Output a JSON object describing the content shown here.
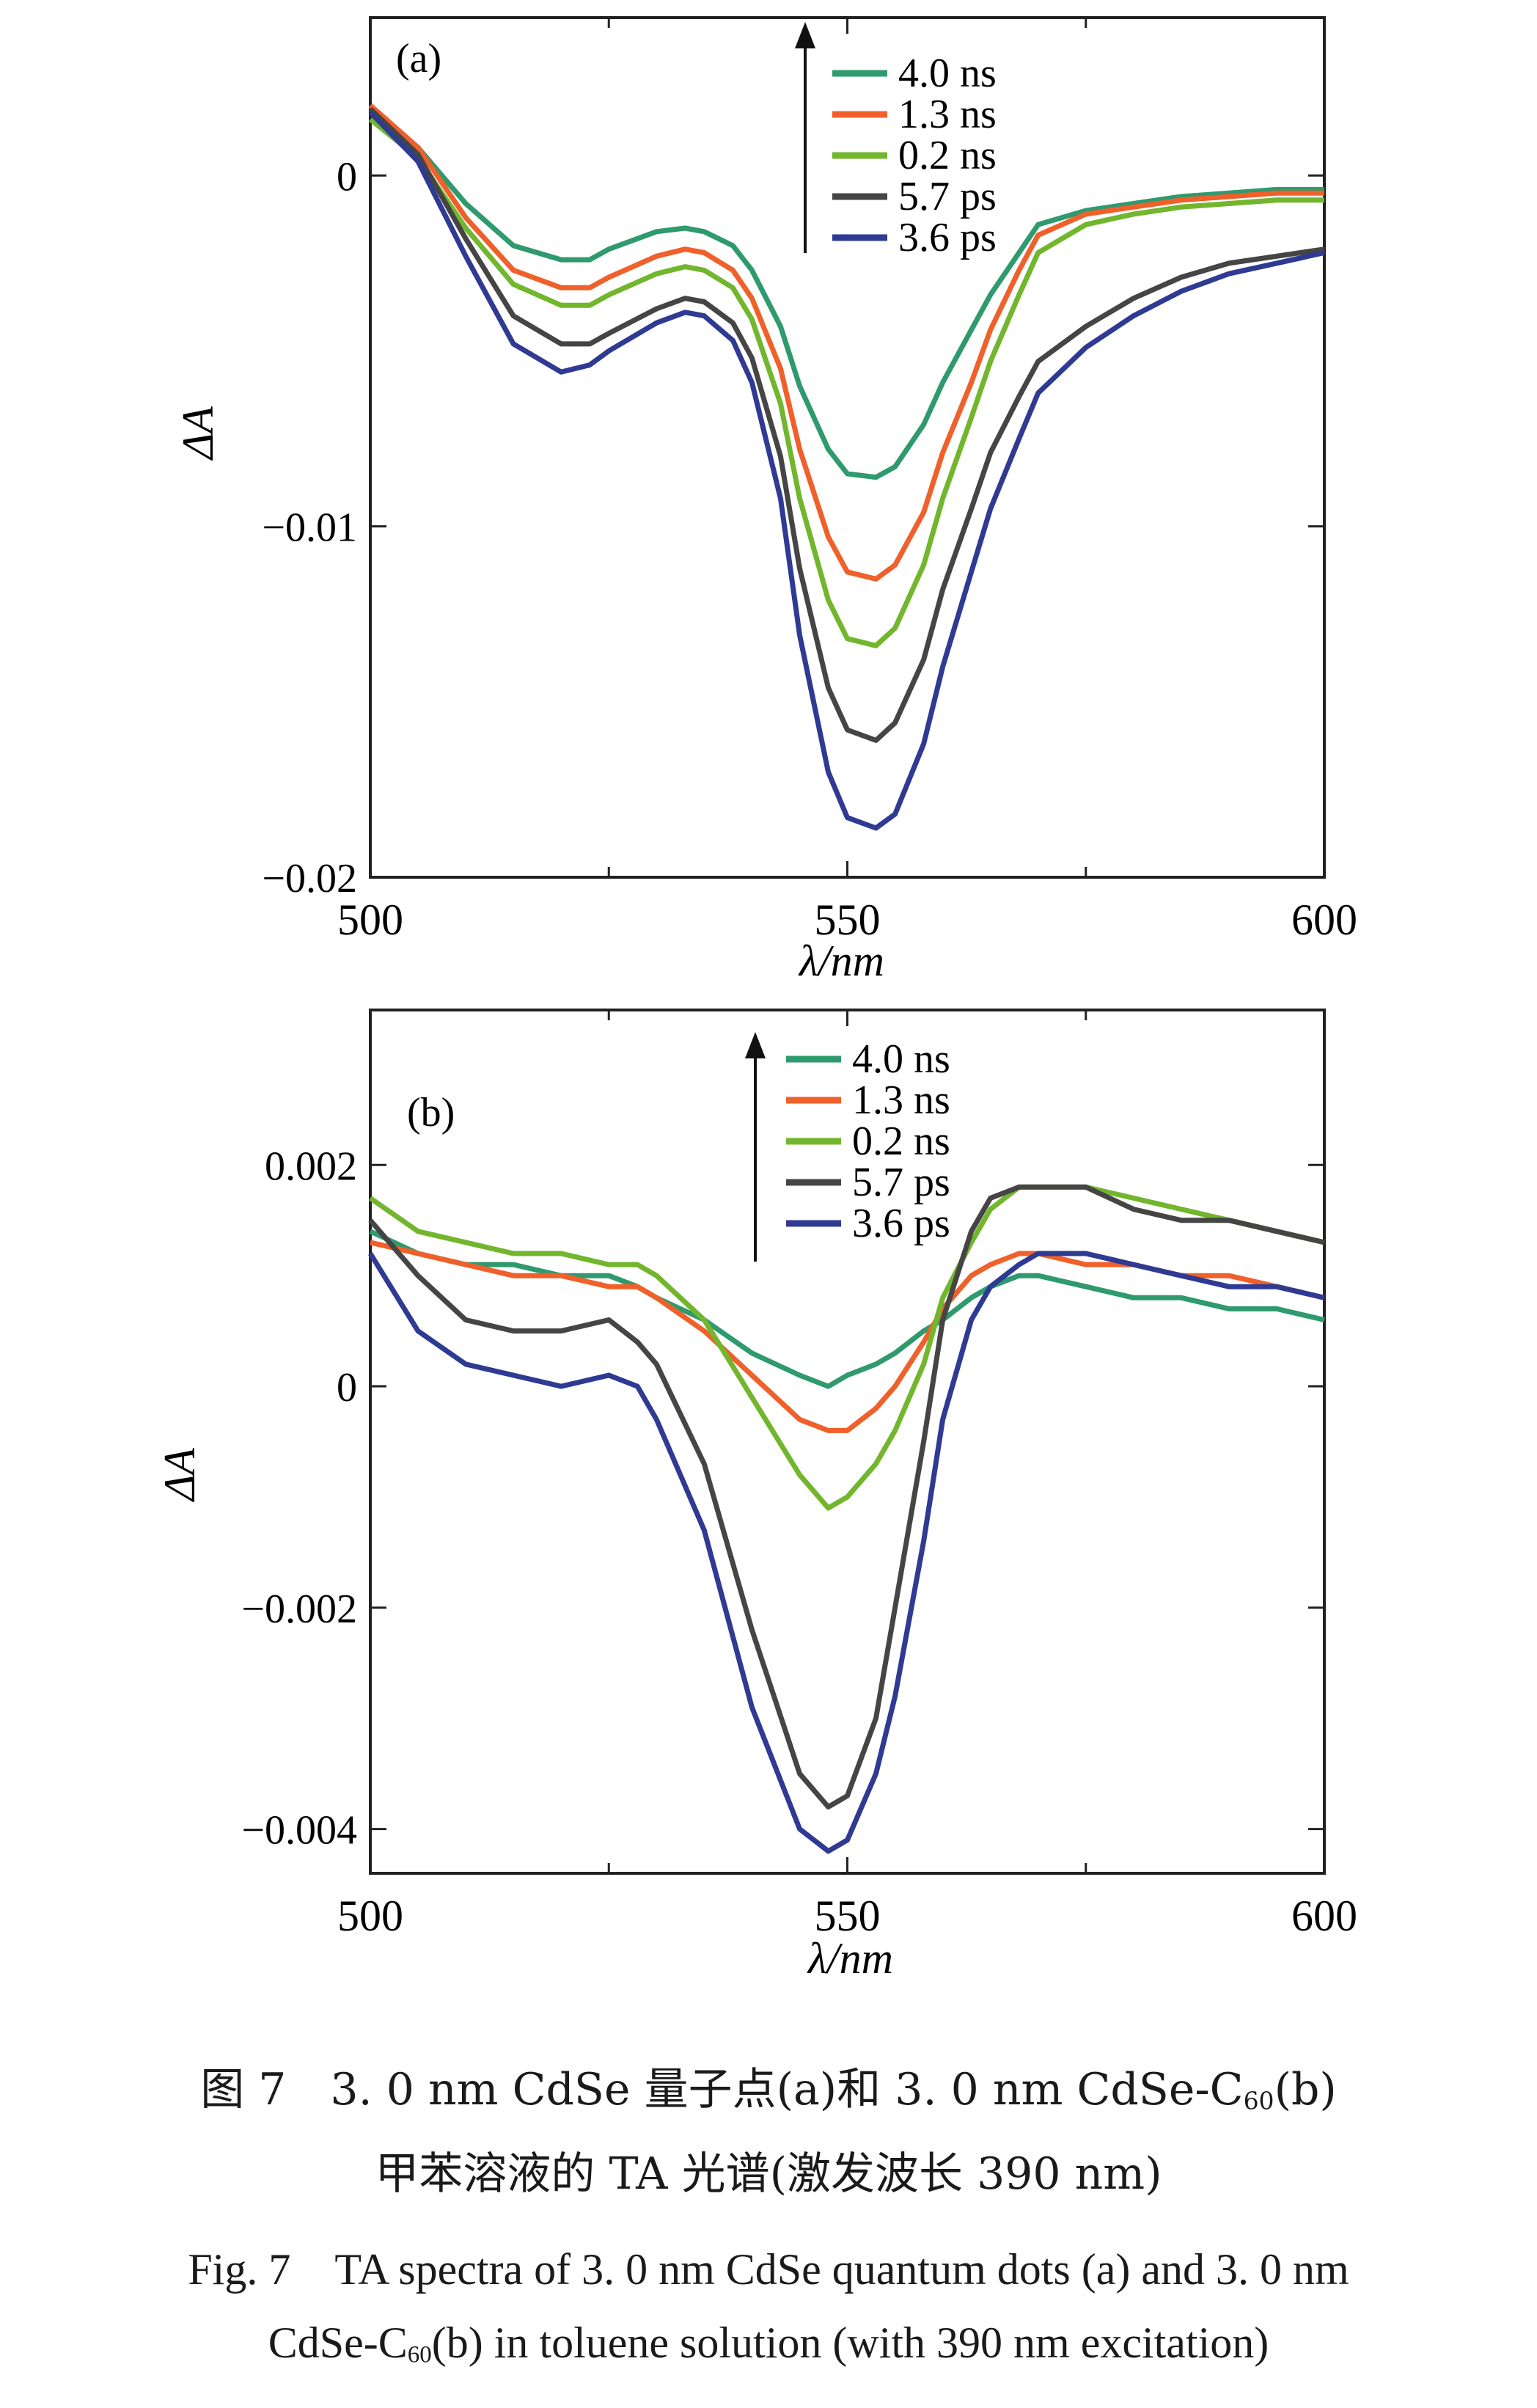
{
  "figure": {
    "caption_cn_1": {
      "prefix": "图 7　3. 0 nm CdSe 量子点(a)和 3. 0 nm CdSe-C",
      "sub": "60",
      "suffix": "(b)"
    },
    "caption_cn_2": "甲苯溶液的 TA 光谱(激发波长 390 nm)",
    "caption_en_1": "Fig. 7　TA spectra of 3. 0 nm CdSe quantum dots (a) and 3. 0 nm",
    "caption_en_2": {
      "prefix": "CdSe-C",
      "sub": "60",
      "suffix": "(b) in toluene solution (with 390 nm excitation)"
    }
  },
  "chart_data": [
    {
      "type": "line",
      "panel_label": "(a)",
      "xlabel": "λ/nm",
      "ylabel": "ΔA",
      "xlim": [
        500,
        600
      ],
      "ylim": [
        -0.02,
        0.0045
      ],
      "xticks": [
        500,
        550,
        600
      ],
      "xtick_labels": [
        "500",
        "550",
        "600"
      ],
      "yticks": [
        0,
        -0.01,
        -0.02
      ],
      "ytick_labels": [
        "0",
        "−0.01",
        "−0.02"
      ],
      "legend_position": "top-right",
      "legend_arrow": true,
      "x": [
        500,
        505,
        510,
        515,
        520,
        523,
        525,
        530,
        533,
        535,
        538,
        540,
        543,
        545,
        548,
        550,
        553,
        555,
        558,
        560,
        563,
        565,
        568,
        570,
        575,
        580,
        585,
        590,
        595,
        600
      ],
      "series": [
        {
          "name": "4.0 ns",
          "color": "#2e9a6e",
          "values": [
            0.0018,
            0.0008,
            -0.0008,
            -0.002,
            -0.0024,
            -0.0024,
            -0.0021,
            -0.0016,
            -0.0015,
            -0.0016,
            -0.002,
            -0.0027,
            -0.0043,
            -0.006,
            -0.0078,
            -0.0085,
            -0.0086,
            -0.0083,
            -0.0071,
            -0.0059,
            -0.0044,
            -0.0034,
            -0.0022,
            -0.0014,
            -0.001,
            -0.0008,
            -0.0006,
            -0.0005,
            -0.0004,
            -0.0004
          ]
        },
        {
          "name": "1.3 ns",
          "color": "#f0602a",
          "values": [
            0.002,
            0.0008,
            -0.0012,
            -0.0027,
            -0.0032,
            -0.0032,
            -0.0029,
            -0.0023,
            -0.0021,
            -0.0022,
            -0.0027,
            -0.0035,
            -0.0055,
            -0.0078,
            -0.0103,
            -0.0113,
            -0.0115,
            -0.0111,
            -0.0096,
            -0.0079,
            -0.0059,
            -0.0044,
            -0.0027,
            -0.0017,
            -0.0011,
            -0.0009,
            -0.0007,
            -0.0006,
            -0.0005,
            -0.0005
          ]
        },
        {
          "name": "0.2 ns",
          "color": "#72b62e",
          "values": [
            0.0016,
            0.0005,
            -0.0015,
            -0.0031,
            -0.0037,
            -0.0037,
            -0.0034,
            -0.0028,
            -0.0026,
            -0.0027,
            -0.0032,
            -0.0041,
            -0.0065,
            -0.0092,
            -0.0121,
            -0.0132,
            -0.0134,
            -0.0129,
            -0.0111,
            -0.0092,
            -0.0069,
            -0.0053,
            -0.0034,
            -0.0022,
            -0.0014,
            -0.0011,
            -0.0009,
            -0.0008,
            -0.0007,
            -0.0007
          ]
        },
        {
          "name": "5.7 ps",
          "color": "#454545",
          "values": [
            0.0019,
            0.0006,
            -0.0018,
            -0.004,
            -0.0048,
            -0.0048,
            -0.0045,
            -0.0038,
            -0.0035,
            -0.0036,
            -0.0042,
            -0.0052,
            -0.008,
            -0.0112,
            -0.0146,
            -0.0158,
            -0.0161,
            -0.0156,
            -0.0138,
            -0.0118,
            -0.0095,
            -0.0079,
            -0.0063,
            -0.0053,
            -0.0043,
            -0.0035,
            -0.0029,
            -0.0025,
            -0.0023,
            -0.0021
          ]
        },
        {
          "name": "3.6 ps",
          "color": "#2f3a93",
          "values": [
            0.0018,
            0.0004,
            -0.0023,
            -0.0048,
            -0.0056,
            -0.0054,
            -0.005,
            -0.0042,
            -0.0039,
            -0.004,
            -0.0047,
            -0.0059,
            -0.0092,
            -0.0131,
            -0.017,
            -0.0183,
            -0.0186,
            -0.0182,
            -0.0162,
            -0.014,
            -0.0113,
            -0.0095,
            -0.0075,
            -0.0062,
            -0.0049,
            -0.004,
            -0.0033,
            -0.0028,
            -0.0025,
            -0.0022
          ]
        }
      ]
    },
    {
      "type": "line",
      "panel_label": "(b)",
      "xlabel": "λ/nm",
      "ylabel": "ΔA",
      "xlim": [
        500,
        600
      ],
      "ylim": [
        -0.0044,
        0.0034
      ],
      "xticks": [
        500,
        550,
        600
      ],
      "xtick_labels": [
        "500",
        "550",
        "600"
      ],
      "yticks": [
        0.002,
        0,
        -0.002,
        -0.004
      ],
      "ytick_labels": [
        "0.002",
        "0",
        "−0.002",
        "−0.004"
      ],
      "legend_position": "top-right",
      "legend_arrow": true,
      "x": [
        500,
        505,
        510,
        515,
        520,
        525,
        528,
        530,
        535,
        540,
        545,
        548,
        550,
        553,
        555,
        558,
        560,
        563,
        565,
        568,
        570,
        575,
        580,
        585,
        590,
        595,
        600
      ],
      "series": [
        {
          "name": "4.0 ns",
          "color": "#2e9a6e",
          "values": [
            0.0014,
            0.0012,
            0.0011,
            0.0011,
            0.001,
            0.001,
            0.0009,
            0.0008,
            0.0006,
            0.0003,
            0.0001,
            0.0,
            0.0001,
            0.0002,
            0.0003,
            0.0005,
            0.0006,
            0.0008,
            0.0009,
            0.001,
            0.001,
            0.0009,
            0.0008,
            0.0008,
            0.0007,
            0.0007,
            0.0006
          ]
        },
        {
          "name": "1.3 ns",
          "color": "#f0602a",
          "values": [
            0.0013,
            0.0012,
            0.0011,
            0.001,
            0.001,
            0.0009,
            0.0009,
            0.0008,
            0.0005,
            0.0001,
            -0.0003,
            -0.0004,
            -0.0004,
            -0.0002,
            0.0,
            0.0004,
            0.0007,
            0.001,
            0.0011,
            0.0012,
            0.0012,
            0.0011,
            0.0011,
            0.001,
            0.001,
            0.0009,
            0.0008
          ]
        },
        {
          "name": "0.2 ns",
          "color": "#72b62e",
          "values": [
            0.0017,
            0.0014,
            0.0013,
            0.0012,
            0.0012,
            0.0011,
            0.0011,
            0.001,
            0.0006,
            -0.0001,
            -0.0008,
            -0.0011,
            -0.001,
            -0.0007,
            -0.0004,
            0.0002,
            0.0008,
            0.0013,
            0.0016,
            0.0018,
            0.0018,
            0.0018,
            0.0017,
            0.0016,
            0.0015,
            0.0014,
            0.0013
          ]
        },
        {
          "name": "5.7 ps",
          "color": "#454545",
          "values": [
            0.0015,
            0.001,
            0.0006,
            0.0005,
            0.0005,
            0.0006,
            0.0004,
            0.0002,
            -0.0007,
            -0.0022,
            -0.0035,
            -0.0038,
            -0.0037,
            -0.003,
            -0.002,
            -0.0005,
            0.0006,
            0.0014,
            0.0017,
            0.0018,
            0.0018,
            0.0018,
            0.0016,
            0.0015,
            0.0015,
            0.0014,
            0.0013
          ]
        },
        {
          "name": "3.6 ps",
          "color": "#2f3a93",
          "values": [
            0.0012,
            0.0005,
            0.0002,
            0.0001,
            0.0,
            0.0001,
            0.0,
            -0.0003,
            -0.0013,
            -0.0029,
            -0.004,
            -0.0042,
            -0.0041,
            -0.0035,
            -0.0028,
            -0.0014,
            -0.0003,
            0.0006,
            0.0009,
            0.0011,
            0.0012,
            0.0012,
            0.0011,
            0.001,
            0.0009,
            0.0009,
            0.0008
          ]
        }
      ]
    }
  ]
}
